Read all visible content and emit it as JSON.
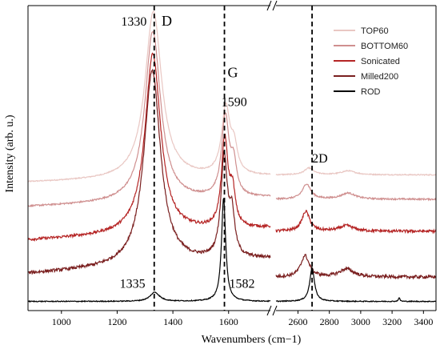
{
  "chart_data": {
    "type": "line",
    "xlabel": "Wavenumbers (cm−1)",
    "ylabel": "Intensity (arb. u.)",
    "x_segments": [
      {
        "range": [
          880,
          1750
        ],
        "ticks": [
          1000,
          1200,
          1400,
          1600
        ]
      },
      {
        "range": [
          2460,
          3480
        ],
        "ticks": [
          2600,
          2800,
          3000,
          3200,
          3400
        ]
      }
    ],
    "y_range": [
      0,
      100
    ],
    "legend_position": "top-right",
    "reference_lines": [
      {
        "segment": 0,
        "x": 1333
      },
      {
        "segment": 0,
        "x": 1585
      },
      {
        "segment": 1,
        "x": 2690
      }
    ],
    "annotations": [
      {
        "text": "1330",
        "x": 1260,
        "y": 93.5,
        "segment": 0,
        "size": 16
      },
      {
        "text": "D",
        "x": 1378,
        "y": 93.5,
        "segment": 0,
        "size": 18
      },
      {
        "text": "G",
        "x": 1615,
        "y": 76.5,
        "segment": 0,
        "size": 18
      },
      {
        "text": "1590",
        "x": 1620,
        "y": 67,
        "segment": 0,
        "size": 16
      },
      {
        "text": "2D",
        "x": 2740,
        "y": 48.5,
        "segment": 1,
        "size": 16
      },
      {
        "text": "1335",
        "x": 1255,
        "y": 7.5,
        "segment": 0,
        "size": 16
      },
      {
        "text": "1582",
        "x": 1648,
        "y": 7.5,
        "segment": 0,
        "size": 16
      }
    ],
    "series": [
      {
        "name": "TOP60",
        "color": "#e9c7c3",
        "noise": 0.35,
        "baseline": 42,
        "slope1": 2,
        "base2": 44.5,
        "peaks1": [
          {
            "x": 1330,
            "h": 55,
            "w": 36
          },
          {
            "x": 1590,
            "h": 22,
            "w": 18
          },
          {
            "x": 1620,
            "h": 8,
            "w": 14
          }
        ],
        "peaks2": [
          {
            "x": 2670,
            "h": 2.2,
            "w": 35
          },
          {
            "x": 2920,
            "h": 1.3,
            "w": 55
          }
        ]
      },
      {
        "name": "BOTTOM60",
        "color": "#cf8f8f",
        "noise": 0.5,
        "baseline": 34,
        "slope1": 3,
        "base2": 36.5,
        "peaks1": [
          {
            "x": 1328,
            "h": 56,
            "w": 34
          },
          {
            "x": 1588,
            "h": 26,
            "w": 16
          },
          {
            "x": 1618,
            "h": 10,
            "w": 13
          }
        ],
        "peaks2": [
          {
            "x": 2655,
            "h": 5,
            "w": 32
          },
          {
            "x": 2920,
            "h": 2,
            "w": 55
          }
        ]
      },
      {
        "name": "Sonicated",
        "color": "#b52525",
        "noise": 0.9,
        "baseline": 23,
        "slope1": 4,
        "base2": 26,
        "peaks1": [
          {
            "x": 1328,
            "h": 59,
            "w": 34
          },
          {
            "x": 1586,
            "h": 29,
            "w": 14
          },
          {
            "x": 1614,
            "h": 11,
            "w": 12
          }
        ],
        "peaks2": [
          {
            "x": 2650,
            "h": 6.5,
            "w": 30
          },
          {
            "x": 2910,
            "h": 1.8,
            "w": 55
          }
        ]
      },
      {
        "name": "Milled200",
        "color": "#7a1f1f",
        "noise": 1.0,
        "baseline": 12,
        "slope1": 5,
        "base2": 11,
        "peaks1": [
          {
            "x": 1326,
            "h": 64,
            "w": 36
          },
          {
            "x": 1584,
            "h": 33,
            "w": 14
          },
          {
            "x": 1612,
            "h": 13,
            "w": 12
          }
        ],
        "peaks2": [
          {
            "x": 2645,
            "h": 7,
            "w": 32
          },
          {
            "x": 2910,
            "h": 2.6,
            "w": 55
          }
        ]
      },
      {
        "name": "ROD",
        "color": "#000000",
        "noise": 0.3,
        "baseline": 3,
        "slope1": 0,
        "base2": 3,
        "peaks1": [
          {
            "x": 1335,
            "h": 3,
            "w": 20
          },
          {
            "x": 1582,
            "h": 34,
            "w": 9
          }
        ],
        "peaks2": [
          {
            "x": 2690,
            "h": 11,
            "w": 18
          },
          {
            "x": 3245,
            "h": 1.2,
            "w": 6
          }
        ]
      }
    ]
  }
}
